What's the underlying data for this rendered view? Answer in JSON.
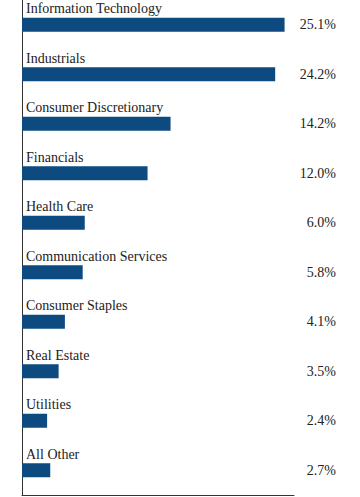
{
  "chart_data": {
    "type": "bar",
    "orientation": "horizontal",
    "categories": [
      "Information Technology",
      "Industrials",
      "Consumer Discretionary",
      "Financials",
      "Health Care",
      "Communication Services",
      "Consumer Staples",
      "Real Estate",
      "Utilities",
      "All Other"
    ],
    "values": [
      25.1,
      24.2,
      14.2,
      12.0,
      6.0,
      5.8,
      4.1,
      3.5,
      2.4,
      2.7
    ],
    "value_labels": [
      "25.1%",
      "24.2%",
      "14.2%",
      "12.0%",
      "6.0%",
      "5.8%",
      "4.1%",
      "3.5%",
      "2.4%",
      "2.7%"
    ],
    "color": "#0d4a80",
    "xlim": [
      0,
      26
    ],
    "grid": false,
    "data_labels": true,
    "tick_labels": false
  }
}
